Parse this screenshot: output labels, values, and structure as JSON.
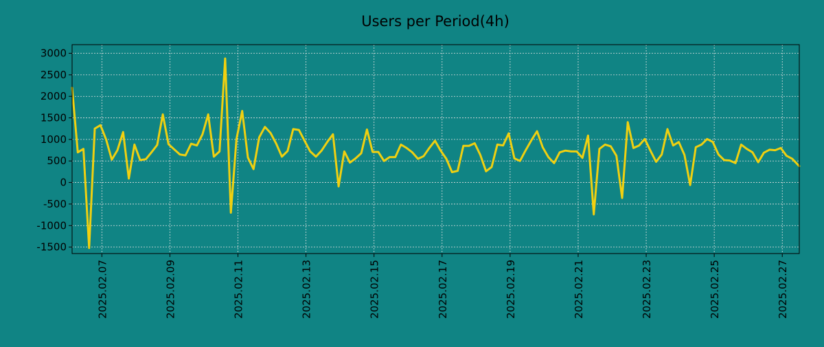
{
  "colors": {
    "background": "#108484",
    "line": "#f0d010",
    "grid": "#e0e0e0",
    "axis": "#000000"
  },
  "chart_data": {
    "type": "line",
    "title": "Users per Period(4h)",
    "xlabel": "",
    "ylabel": "",
    "grid": true,
    "legend": "none",
    "x_range_days": [
      0,
      21.375
    ],
    "ylim": [
      -1650,
      3200
    ],
    "y_ticks": [
      3000,
      2500,
      2000,
      1500,
      1000,
      500,
      0,
      -500,
      -1000,
      -1500
    ],
    "y_tick_labels": [
      "3000",
      "2500",
      "2000",
      "1500",
      "1000",
      "500",
      "0",
      "-500",
      "-1000",
      "-1500"
    ],
    "x_ticks_days": [
      0.875,
      2.875,
      4.875,
      6.875,
      8.875,
      10.875,
      12.875,
      14.875,
      16.875,
      18.875,
      20.875
    ],
    "x_tick_labels": [
      "2025.02.07",
      "2025.02.09",
      "2025.02.11",
      "2025.02.13",
      "2025.02.15",
      "2025.02.17",
      "2025.02.19",
      "2025.02.21",
      "2025.02.23",
      "2025.02.25",
      "2025.02.27"
    ],
    "series": [
      {
        "name": "Users",
        "x_days": [
          0,
          0.167,
          0.333,
          0.5,
          0.667,
          0.833,
          1.0,
          1.167,
          1.333,
          1.5,
          1.667,
          1.833,
          2.0,
          2.167,
          2.333,
          2.5,
          2.667,
          2.833,
          3.0,
          3.167,
          3.333,
          3.5,
          3.667,
          3.833,
          4.0,
          4.167,
          4.333,
          4.5,
          4.667,
          4.833,
          5.0,
          5.167,
          5.333,
          5.5,
          5.667,
          5.833,
          6.0,
          6.167,
          6.333,
          6.5,
          6.667,
          6.833,
          7.0,
          7.167,
          7.333,
          7.5,
          7.667,
          7.833,
          8.0,
          8.167,
          8.333,
          8.5,
          8.667,
          8.833,
          9.0,
          9.167,
          9.333,
          9.5,
          9.667,
          9.833,
          10.0,
          10.167,
          10.333,
          10.5,
          10.667,
          10.833,
          11.0,
          11.167,
          11.333,
          11.5,
          11.667,
          11.833,
          12.0,
          12.167,
          12.333,
          12.5,
          12.667,
          12.833,
          13.0,
          13.167,
          13.333,
          13.5,
          13.667,
          13.833,
          14.0,
          14.167,
          14.333,
          14.5,
          14.667,
          14.833,
          15.0,
          15.167,
          15.333,
          15.5,
          15.667,
          15.833,
          16.0,
          16.167,
          16.333,
          16.5,
          16.667,
          16.833,
          17.0,
          17.167,
          17.333,
          17.5,
          17.667,
          17.833,
          18.0,
          18.167,
          18.333,
          18.5,
          18.667,
          18.833,
          19.0,
          19.167,
          19.333,
          19.5,
          19.667,
          19.833,
          20.0,
          20.167,
          20.333,
          20.5,
          20.667,
          20.833,
          21.0,
          21.167,
          21.375
        ],
        "values": [
          2200,
          700,
          780,
          -1520,
          1250,
          1330,
          1000,
          530,
          750,
          1170,
          90,
          880,
          520,
          540,
          700,
          870,
          1580,
          890,
          770,
          650,
          630,
          900,
          860,
          1120,
          1580,
          600,
          720,
          2880,
          -700,
          1010,
          1660,
          580,
          310,
          1050,
          1290,
          1150,
          900,
          600,
          730,
          1240,
          1220,
          970,
          720,
          600,
          740,
          940,
          1120,
          -90,
          720,
          460,
          560,
          680,
          1230,
          710,
          710,
          500,
          590,
          590,
          880,
          800,
          700,
          550,
          610,
          800,
          970,
          740,
          550,
          240,
          270,
          850,
          850,
          910,
          640,
          260,
          360,
          880,
          860,
          1140,
          560,
          500,
          750,
          980,
          1190,
          820,
          590,
          450,
          700,
          740,
          720,
          720,
          570,
          1090,
          -740,
          780,
          880,
          840,
          620,
          -360,
          1400,
          800,
          860,
          1010,
          740,
          480,
          650,
          1240,
          860,
          940,
          640,
          -60,
          820,
          880,
          1010,
          940,
          650,
          520,
          510,
          450,
          880,
          780,
          700,
          470,
          690,
          760,
          750,
          800,
          620,
          550,
          380
        ]
      }
    ]
  }
}
